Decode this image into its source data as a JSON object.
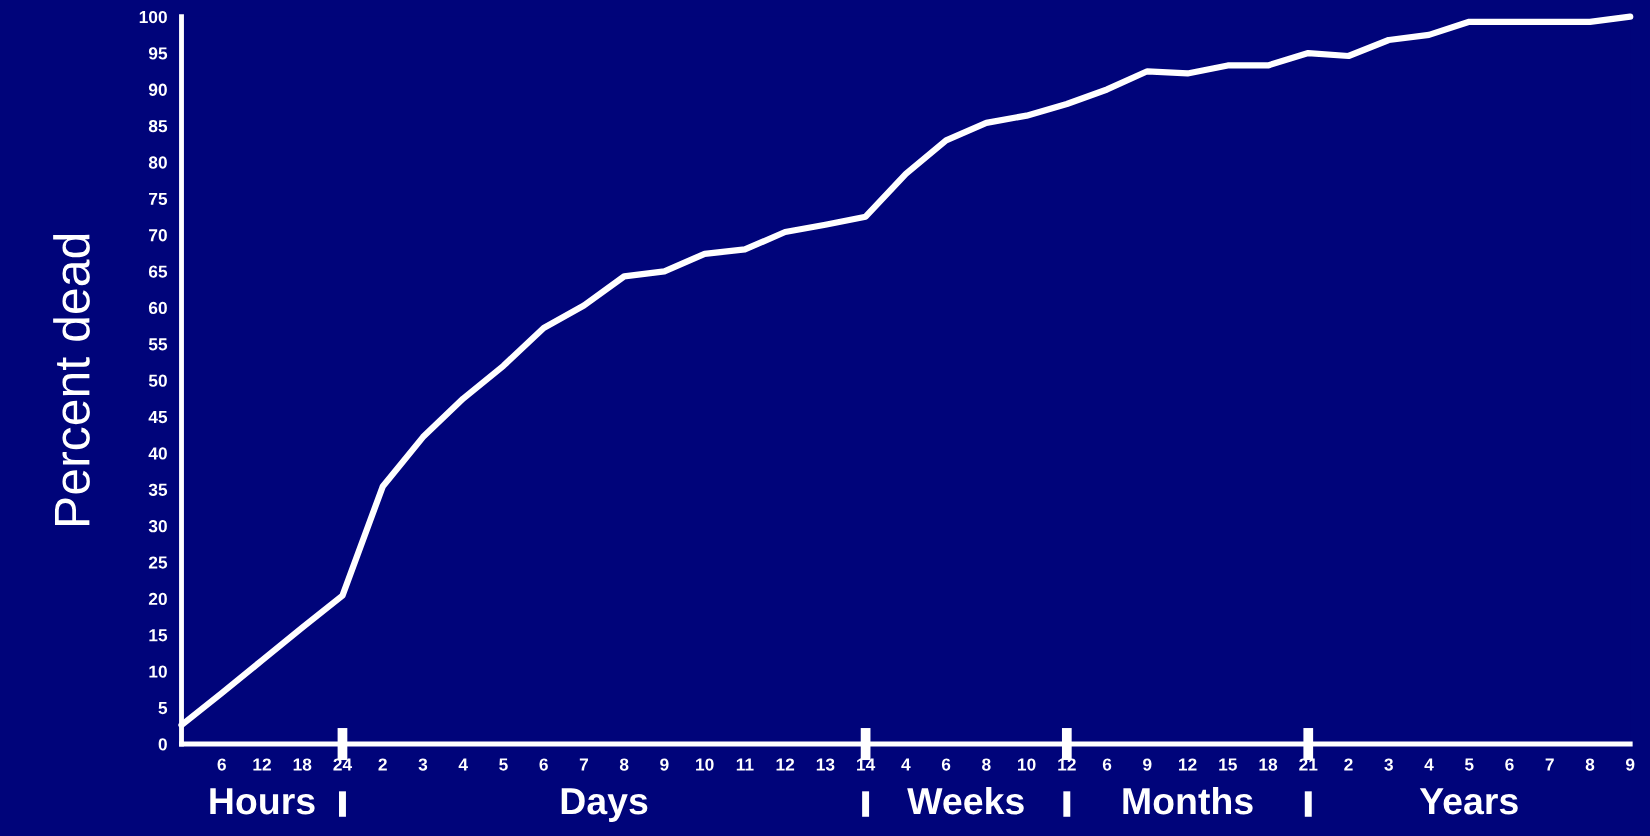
{
  "chart_data": {
    "type": "line",
    "ylabel": "Percent dead",
    "categories": [
      null,
      "6",
      "12",
      "18",
      "24",
      "2",
      "3",
      "4",
      "5",
      "6",
      "7",
      "8",
      "9",
      "10",
      "11",
      "12",
      "13",
      "14",
      "4",
      "6",
      "8",
      "10",
      "12",
      "6",
      "9",
      "12",
      "15",
      "18",
      "21",
      "2",
      "3",
      "4",
      "5",
      "6",
      "7",
      "8",
      "9"
    ],
    "series": [
      {
        "color": "#ffffff",
        "values": [
          2.6,
          7,
          11.5,
          16,
          20.4,
          35.4,
          42.2,
          47.5,
          52,
          57.2,
          60.3,
          64.3,
          65,
          67.4,
          68,
          70.4,
          71.4,
          72.5,
          78.4,
          83,
          85.4,
          86.4,
          88,
          90,
          92.5,
          92.2,
          93.3,
          93.3,
          95,
          94.6,
          96.8,
          97.5,
          99.3,
          99.3,
          99.3,
          99.3,
          100
        ]
      }
    ],
    "ylim": [
      0,
      100
    ],
    "yticks": [
      0,
      5,
      10,
      15,
      20,
      25,
      30,
      35,
      40,
      45,
      50,
      55,
      60,
      65,
      70,
      75,
      80,
      85,
      90,
      95,
      100
    ],
    "annotations": [
      "Hours",
      "Days",
      "Weeks",
      "Months",
      "Years"
    ],
    "grid": false,
    "legend": false,
    "marker": "none",
    "line_style": "solid"
  }
}
